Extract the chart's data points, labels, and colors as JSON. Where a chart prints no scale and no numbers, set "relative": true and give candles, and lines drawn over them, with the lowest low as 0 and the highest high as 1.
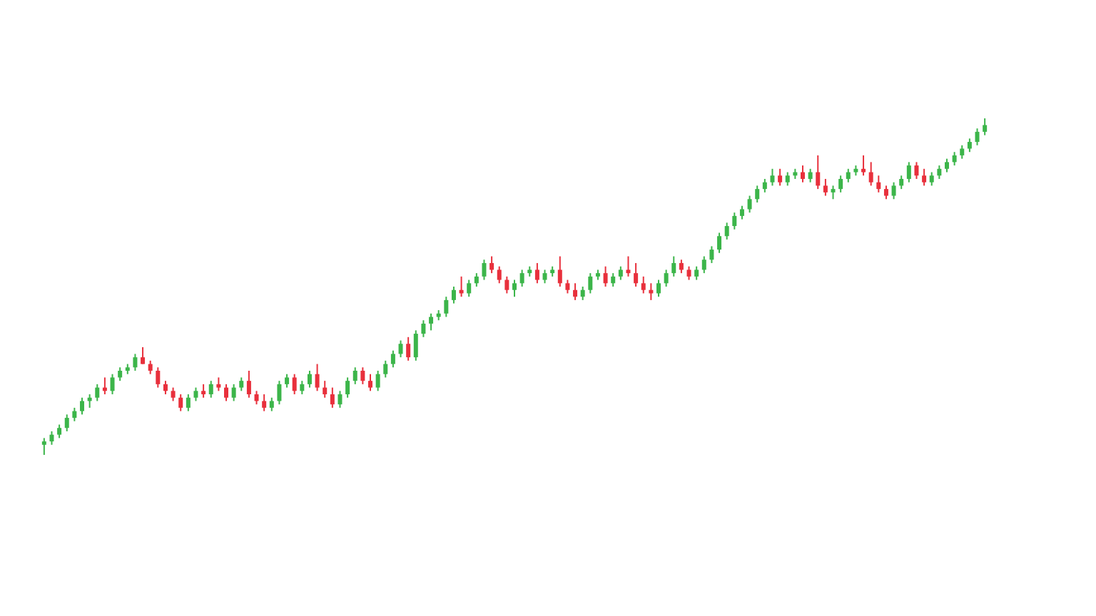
{
  "chart_data": {
    "type": "candlestick",
    "relative": true,
    "categories": [
      null,
      null,
      null,
      null,
      null,
      null,
      null,
      null,
      null,
      null,
      null,
      null,
      null,
      null,
      null,
      null,
      null,
      null,
      null,
      null,
      null,
      null,
      null,
      null,
      null,
      null,
      null,
      null,
      null,
      null,
      null,
      null,
      null,
      null,
      null,
      null,
      null,
      null,
      null,
      null,
      null,
      null,
      null,
      null,
      null,
      null,
      null,
      null,
      null,
      null,
      null,
      null,
      null,
      null,
      null,
      null,
      null,
      null,
      null,
      null,
      null,
      null,
      null,
      null,
      null,
      null,
      null,
      null,
      null,
      null,
      null,
      null,
      null,
      null,
      null,
      null,
      null,
      null,
      null,
      null,
      null,
      null,
      null,
      null,
      null,
      null,
      null,
      null,
      null,
      null,
      null,
      null,
      null,
      null,
      null,
      null,
      null,
      null,
      null,
      null,
      null,
      null,
      null,
      null,
      null,
      null,
      null,
      null,
      null,
      null,
      null,
      null,
      null,
      null,
      null,
      null,
      null,
      null,
      null,
      null,
      null,
      null,
      null,
      null,
      null
    ],
    "ohlc": [
      [
        0.03,
        0.05,
        0.0,
        0.04
      ],
      [
        0.04,
        0.07,
        0.03,
        0.06
      ],
      [
        0.06,
        0.09,
        0.05,
        0.08
      ],
      [
        0.08,
        0.12,
        0.07,
        0.11
      ],
      [
        0.11,
        0.14,
        0.1,
        0.13
      ],
      [
        0.13,
        0.17,
        0.12,
        0.16
      ],
      [
        0.16,
        0.18,
        0.14,
        0.17
      ],
      [
        0.17,
        0.21,
        0.16,
        0.2
      ],
      [
        0.2,
        0.23,
        0.18,
        0.19
      ],
      [
        0.19,
        0.24,
        0.18,
        0.23
      ],
      [
        0.23,
        0.26,
        0.22,
        0.25
      ],
      [
        0.25,
        0.27,
        0.24,
        0.26
      ],
      [
        0.26,
        0.3,
        0.25,
        0.29
      ],
      [
        0.29,
        0.32,
        0.27,
        0.27
      ],
      [
        0.27,
        0.28,
        0.24,
        0.25
      ],
      [
        0.25,
        0.26,
        0.2,
        0.21
      ],
      [
        0.21,
        0.22,
        0.18,
        0.19
      ],
      [
        0.19,
        0.2,
        0.16,
        0.17
      ],
      [
        0.17,
        0.18,
        0.13,
        0.14
      ],
      [
        0.14,
        0.18,
        0.13,
        0.17
      ],
      [
        0.17,
        0.2,
        0.16,
        0.19
      ],
      [
        0.19,
        0.21,
        0.17,
        0.18
      ],
      [
        0.18,
        0.22,
        0.17,
        0.21
      ],
      [
        0.21,
        0.23,
        0.19,
        0.2
      ],
      [
        0.2,
        0.21,
        0.16,
        0.17
      ],
      [
        0.17,
        0.21,
        0.16,
        0.2
      ],
      [
        0.2,
        0.23,
        0.19,
        0.22
      ],
      [
        0.22,
        0.25,
        0.17,
        0.18
      ],
      [
        0.18,
        0.19,
        0.15,
        0.16
      ],
      [
        0.16,
        0.18,
        0.13,
        0.14
      ],
      [
        0.14,
        0.17,
        0.13,
        0.16
      ],
      [
        0.16,
        0.22,
        0.15,
        0.21
      ],
      [
        0.21,
        0.24,
        0.2,
        0.23
      ],
      [
        0.23,
        0.24,
        0.18,
        0.19
      ],
      [
        0.19,
        0.22,
        0.18,
        0.21
      ],
      [
        0.21,
        0.25,
        0.2,
        0.24
      ],
      [
        0.24,
        0.27,
        0.19,
        0.2
      ],
      [
        0.2,
        0.22,
        0.17,
        0.18
      ],
      [
        0.18,
        0.2,
        0.14,
        0.15
      ],
      [
        0.15,
        0.19,
        0.14,
        0.18
      ],
      [
        0.18,
        0.23,
        0.17,
        0.22
      ],
      [
        0.22,
        0.26,
        0.21,
        0.25
      ],
      [
        0.25,
        0.26,
        0.21,
        0.22
      ],
      [
        0.22,
        0.24,
        0.19,
        0.2
      ],
      [
        0.2,
        0.25,
        0.19,
        0.24
      ],
      [
        0.24,
        0.28,
        0.23,
        0.27
      ],
      [
        0.27,
        0.31,
        0.26,
        0.3
      ],
      [
        0.3,
        0.34,
        0.29,
        0.33
      ],
      [
        0.33,
        0.35,
        0.28,
        0.29
      ],
      [
        0.29,
        0.37,
        0.28,
        0.36
      ],
      [
        0.36,
        0.4,
        0.35,
        0.39
      ],
      [
        0.39,
        0.42,
        0.37,
        0.41
      ],
      [
        0.41,
        0.43,
        0.4,
        0.42
      ],
      [
        0.42,
        0.47,
        0.41,
        0.46
      ],
      [
        0.46,
        0.5,
        0.45,
        0.49
      ],
      [
        0.49,
        0.53,
        0.47,
        0.48
      ],
      [
        0.48,
        0.52,
        0.47,
        0.51
      ],
      [
        0.51,
        0.54,
        0.5,
        0.53
      ],
      [
        0.53,
        0.58,
        0.52,
        0.57
      ],
      [
        0.57,
        0.59,
        0.54,
        0.55
      ],
      [
        0.55,
        0.56,
        0.51,
        0.52
      ],
      [
        0.52,
        0.53,
        0.48,
        0.49
      ],
      [
        0.49,
        0.52,
        0.47,
        0.51
      ],
      [
        0.51,
        0.55,
        0.5,
        0.54
      ],
      [
        0.54,
        0.56,
        0.53,
        0.55
      ],
      [
        0.55,
        0.57,
        0.51,
        0.52
      ],
      [
        0.52,
        0.55,
        0.51,
        0.54
      ],
      [
        0.54,
        0.56,
        0.53,
        0.55
      ],
      [
        0.55,
        0.59,
        0.5,
        0.51
      ],
      [
        0.51,
        0.52,
        0.48,
        0.49
      ],
      [
        0.49,
        0.51,
        0.46,
        0.47
      ],
      [
        0.47,
        0.5,
        0.46,
        0.49
      ],
      [
        0.49,
        0.54,
        0.48,
        0.53
      ],
      [
        0.53,
        0.55,
        0.52,
        0.54
      ],
      [
        0.54,
        0.56,
        0.5,
        0.51
      ],
      [
        0.51,
        0.54,
        0.5,
        0.53
      ],
      [
        0.53,
        0.56,
        0.52,
        0.55
      ],
      [
        0.55,
        0.59,
        0.53,
        0.54
      ],
      [
        0.54,
        0.57,
        0.5,
        0.51
      ],
      [
        0.51,
        0.53,
        0.48,
        0.49
      ],
      [
        0.49,
        0.51,
        0.46,
        0.48
      ],
      [
        0.48,
        0.52,
        0.47,
        0.51
      ],
      [
        0.51,
        0.55,
        0.5,
        0.54
      ],
      [
        0.54,
        0.59,
        0.53,
        0.57
      ],
      [
        0.57,
        0.58,
        0.54,
        0.55
      ],
      [
        0.55,
        0.56,
        0.52,
        0.53
      ],
      [
        0.53,
        0.56,
        0.52,
        0.55
      ],
      [
        0.55,
        0.59,
        0.54,
        0.58
      ],
      [
        0.58,
        0.62,
        0.57,
        0.61
      ],
      [
        0.61,
        0.66,
        0.6,
        0.65
      ],
      [
        0.65,
        0.69,
        0.64,
        0.68
      ],
      [
        0.68,
        0.72,
        0.67,
        0.71
      ],
      [
        0.71,
        0.74,
        0.7,
        0.73
      ],
      [
        0.73,
        0.77,
        0.72,
        0.76
      ],
      [
        0.76,
        0.8,
        0.75,
        0.79
      ],
      [
        0.79,
        0.82,
        0.78,
        0.81
      ],
      [
        0.81,
        0.85,
        0.8,
        0.83
      ],
      [
        0.83,
        0.85,
        0.8,
        0.81
      ],
      [
        0.81,
        0.84,
        0.8,
        0.83
      ],
      [
        0.83,
        0.85,
        0.82,
        0.84
      ],
      [
        0.84,
        0.86,
        0.81,
        0.82
      ],
      [
        0.82,
        0.85,
        0.81,
        0.84
      ],
      [
        0.84,
        0.89,
        0.79,
        0.8
      ],
      [
        0.8,
        0.82,
        0.77,
        0.78
      ],
      [
        0.78,
        0.8,
        0.76,
        0.79
      ],
      [
        0.79,
        0.83,
        0.78,
        0.82
      ],
      [
        0.82,
        0.85,
        0.81,
        0.84
      ],
      [
        0.84,
        0.86,
        0.83,
        0.85
      ],
      [
        0.85,
        0.89,
        0.83,
        0.84
      ],
      [
        0.84,
        0.87,
        0.8,
        0.81
      ],
      [
        0.81,
        0.83,
        0.78,
        0.79
      ],
      [
        0.79,
        0.8,
        0.76,
        0.77
      ],
      [
        0.77,
        0.81,
        0.76,
        0.8
      ],
      [
        0.8,
        0.83,
        0.79,
        0.82
      ],
      [
        0.82,
        0.87,
        0.81,
        0.86
      ],
      [
        0.86,
        0.87,
        0.82,
        0.83
      ],
      [
        0.83,
        0.85,
        0.8,
        0.81
      ],
      [
        0.81,
        0.84,
        0.8,
        0.83
      ],
      [
        0.83,
        0.86,
        0.82,
        0.85
      ],
      [
        0.85,
        0.88,
        0.84,
        0.87
      ],
      [
        0.87,
        0.9,
        0.86,
        0.89
      ],
      [
        0.89,
        0.92,
        0.88,
        0.91
      ],
      [
        0.91,
        0.94,
        0.9,
        0.93
      ],
      [
        0.93,
        0.97,
        0.92,
        0.96
      ],
      [
        0.96,
        1.0,
        0.95,
        0.98
      ]
    ],
    "colors": [
      "#3cb54a",
      "#3cb54a",
      "#3cb54a",
      "#3cb54a",
      "#3cb54a",
      "#3cb54a",
      "#3cb54a",
      "#3cb54a",
      "#e8303c",
      "#3cb54a",
      "#3cb54a",
      "#3cb54a",
      "#3cb54a",
      "#e8303c",
      "#e8303c",
      "#e8303c",
      "#e8303c",
      "#e8303c",
      "#e8303c",
      "#3cb54a",
      "#3cb54a",
      "#e8303c",
      "#3cb54a",
      "#e8303c",
      "#e8303c",
      "#3cb54a",
      "#3cb54a",
      "#e8303c",
      "#e8303c",
      "#e8303c",
      "#3cb54a",
      "#3cb54a",
      "#3cb54a",
      "#e8303c",
      "#3cb54a",
      "#3cb54a",
      "#e8303c",
      "#e8303c",
      "#e8303c",
      "#3cb54a",
      "#3cb54a",
      "#3cb54a",
      "#e8303c",
      "#e8303c",
      "#3cb54a",
      "#3cb54a",
      "#3cb54a",
      "#3cb54a",
      "#e8303c",
      "#3cb54a",
      "#3cb54a",
      "#3cb54a",
      "#3cb54a",
      "#3cb54a",
      "#3cb54a",
      "#e8303c",
      "#3cb54a",
      "#3cb54a",
      "#3cb54a",
      "#e8303c",
      "#e8303c",
      "#e8303c",
      "#3cb54a",
      "#3cb54a",
      "#3cb54a",
      "#e8303c",
      "#3cb54a",
      "#3cb54a",
      "#e8303c",
      "#e8303c",
      "#e8303c",
      "#3cb54a",
      "#3cb54a",
      "#3cb54a",
      "#e8303c",
      "#3cb54a",
      "#3cb54a",
      "#e8303c",
      "#e8303c",
      "#e8303c",
      "#e8303c",
      "#3cb54a",
      "#3cb54a",
      "#3cb54a",
      "#e8303c",
      "#e8303c",
      "#3cb54a",
      "#3cb54a",
      "#3cb54a",
      "#3cb54a",
      "#3cb54a",
      "#3cb54a",
      "#3cb54a",
      "#3cb54a",
      "#3cb54a",
      "#3cb54a",
      "#3cb54a",
      "#e8303c",
      "#3cb54a",
      "#3cb54a",
      "#e8303c",
      "#3cb54a",
      "#e8303c",
      "#e8303c",
      "#3cb54a",
      "#3cb54a",
      "#3cb54a",
      "#3cb54a",
      "#e8303c",
      "#e8303c",
      "#e8303c",
      "#e8303c",
      "#3cb54a",
      "#3cb54a",
      "#3cb54a",
      "#e8303c",
      "#e8303c",
      "#3cb54a",
      "#3cb54a",
      "#3cb54a",
      "#3cb54a",
      "#3cb54a",
      "#3cb54a",
      "#3cb54a",
      "#3cb54a"
    ]
  }
}
